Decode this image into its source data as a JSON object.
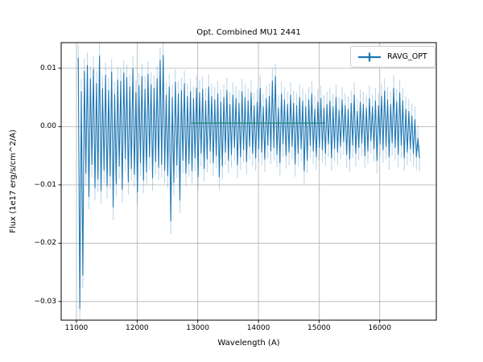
{
  "window": {
    "background": "#ffffff"
  },
  "chart_data": {
    "type": "line",
    "title": "Opt. Combined MU1 2441",
    "xlabel": "Wavelength (A)",
    "ylabel": "Flux (1e17 erg/s/cm^2/A)",
    "xlim": [
      10748,
      16933
    ],
    "ylim": [
      -0.0332,
      0.0144
    ],
    "grid": true,
    "x_tick_values": [
      11000,
      12000,
      13000,
      14000,
      15000,
      16000
    ],
    "x_tick_labels": [
      "11000",
      "12000",
      "13000",
      "14000",
      "15000",
      "16000"
    ],
    "y_tick_values": [
      0.01,
      0.0,
      -0.01,
      -0.02,
      -0.03
    ],
    "y_tick_labels": [
      "0.01",
      "0.00",
      "−0.01",
      "−0.02",
      "−0.03"
    ],
    "legend": {
      "label": "RAVG_OPT",
      "position": "upper right"
    },
    "colors": {
      "series": "#1f77b4",
      "reference": "#2ca02c",
      "grid": "#b0b0b0",
      "frame": "#000000",
      "text": "#000000"
    },
    "reference_line": {
      "y": 0.0006,
      "x_from": 12900,
      "x_to": 15100
    },
    "series": [
      {
        "name": "RAVG_OPT",
        "color": "#1f77b4",
        "style": "errorbar-line",
        "x_start": 11030,
        "x_step": 25,
        "y_scale": 0.001,
        "yerr_1e3": 2.2,
        "y_1e3": [
          11.8,
          -31.2,
          6.0,
          -25.5,
          9.5,
          -8.0,
          10.5,
          -12.0,
          8.2,
          -6.5,
          9.8,
          -10.5,
          7.4,
          -9.0,
          12.1,
          -11.0,
          6.5,
          -7.5,
          8.8,
          -10.2,
          6.2,
          -8.5,
          9.4,
          -13.8,
          5.5,
          -9.8,
          8.0,
          -6.8,
          7.8,
          -10.8,
          9.2,
          -5.5,
          8.4,
          -9.5,
          6.8,
          -7.2,
          10.0,
          -8.2,
          5.8,
          -11.2,
          7.0,
          -6.2,
          8.6,
          -9.2,
          6.4,
          -7.8,
          9.0,
          -5.2,
          7.2,
          -8.8,
          6.6,
          -6.0,
          8.2,
          -7.0,
          11.4,
          -6.5,
          12.2,
          -7.5,
          5.4,
          -8.4,
          6.8,
          -16.2,
          5.0,
          -9.6,
          7.6,
          -6.6,
          5.6,
          -12.6,
          6.2,
          -5.8,
          7.4,
          -8.0,
          5.2,
          -6.4,
          6.0,
          -7.6,
          4.8,
          -5.4,
          6.6,
          -8.6,
          5.8,
          -4.6,
          6.4,
          -7.2,
          4.4,
          -5.6,
          6.8,
          -4.2,
          5.2,
          -6.2,
          4.6,
          -5.0,
          5.6,
          -8.6,
          4.2,
          -6.8,
          5.0,
          -4.4,
          6.2,
          -5.8,
          3.8,
          -4.8,
          5.4,
          -3.6,
          4.8,
          -6.6,
          4.0,
          -5.2,
          6.0,
          -4.0,
          5.0,
          -6.0,
          4.4,
          -3.4,
          5.8,
          -4.6,
          3.6,
          -5.4,
          4.2,
          -3.8,
          6.6,
          -4.4,
          3.4,
          -5.6,
          4.8,
          -3.2,
          5.2,
          -4.2,
          7.8,
          -3.6,
          8.6,
          -4.8,
          3.2,
          -6.2,
          5.6,
          -3.0,
          4.6,
          -5.0,
          3.8,
          -4.4,
          5.4,
          -3.4,
          4.0,
          -6.4,
          3.6,
          -4.6,
          5.0,
          -3.8,
          4.4,
          -7.6,
          3.4,
          -5.8,
          4.6,
          -3.2,
          5.6,
          -4.2,
          3.0,
          -5.2,
          4.2,
          -3.6,
          4.8,
          -4.0,
          3.2,
          -4.6,
          3.8,
          -3.0,
          4.4,
          -5.4,
          3.4,
          -3.8,
          5.0,
          -4.4,
          2.8,
          -3.4,
          4.6,
          -2.6,
          3.6,
          -4.8,
          3.0,
          -5.6,
          4.0,
          -3.2,
          5.4,
          -4.6,
          2.6,
          -3.6,
          4.2,
          -2.8,
          3.8,
          -5.0,
          3.2,
          -4.2,
          4.8,
          -2.4,
          3.4,
          -3.8,
          4.4,
          -5.8,
          3.6,
          -3.0,
          5.2,
          -4.0,
          6.1,
          -3.4,
          4.6,
          -5.2,
          3.8,
          -2.8,
          6.6,
          -3.6,
          4.2,
          -4.8,
          5.8,
          -3.2,
          4.4,
          -5.4,
          3.0,
          -4.4,
          2.6,
          -3.8,
          1.8,
          -4.6,
          1.2,
          -5.2,
          -2.0,
          -5.4
        ]
      }
    ]
  }
}
